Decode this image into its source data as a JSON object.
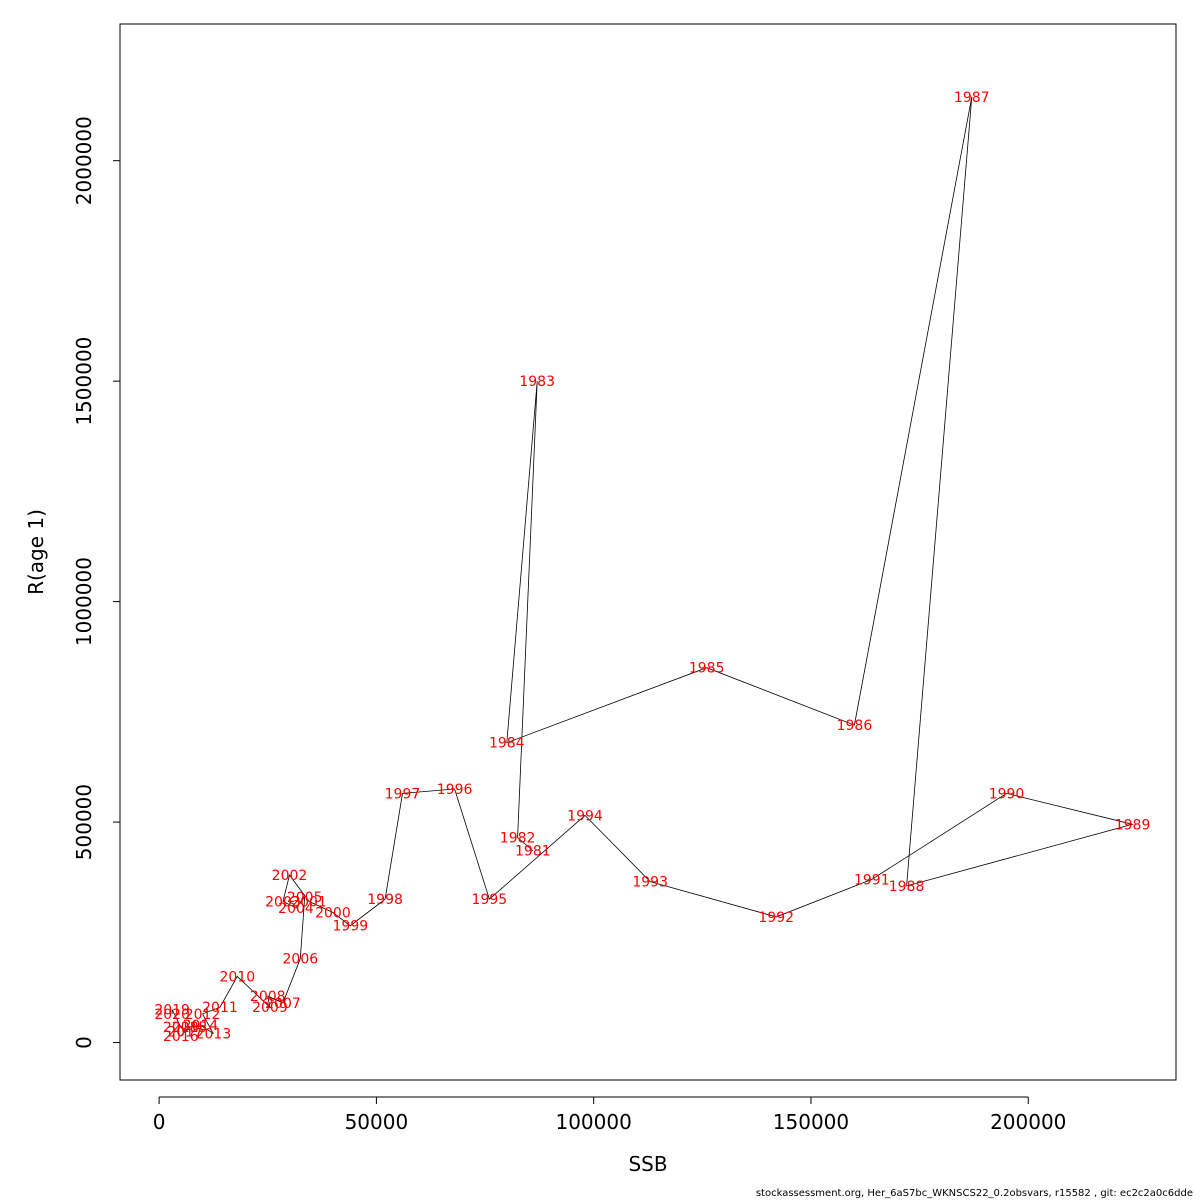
{
  "chart_data": {
    "type": "line",
    "title": "",
    "xlabel": "SSB",
    "ylabel": "R(age 1)",
    "xlim": [
      -9000,
      234000
    ],
    "ylim": [
      -85000,
      2310000
    ],
    "x_ticks": [
      0,
      50000,
      100000,
      150000,
      200000
    ],
    "x_tick_labels": [
      "0",
      "50000",
      "100000",
      "150000",
      "200000"
    ],
    "y_ticks": [
      0,
      500000,
      1000000,
      1500000,
      2000000
    ],
    "y_tick_labels": [
      "0",
      "500000",
      "1000000",
      "1500000",
      "2000000"
    ],
    "grid": false,
    "line_color": "#000000",
    "label_color": "#ff0000",
    "points": [
      {
        "label": "1981",
        "x": 86000,
        "y": 435000
      },
      {
        "label": "1982",
        "x": 82500,
        "y": 465000
      },
      {
        "label": "1983",
        "x": 87000,
        "y": 1500000
      },
      {
        "label": "1984",
        "x": 80000,
        "y": 680000
      },
      {
        "label": "1985",
        "x": 126000,
        "y": 850000
      },
      {
        "label": "1986",
        "x": 160000,
        "y": 720000
      },
      {
        "label": "1987",
        "x": 187000,
        "y": 2145000
      },
      {
        "label": "1988",
        "x": 172000,
        "y": 355000
      },
      {
        "label": "1989",
        "x": 224000,
        "y": 495000
      },
      {
        "label": "1990",
        "x": 195000,
        "y": 565000
      },
      {
        "label": "1991",
        "x": 164000,
        "y": 370000
      },
      {
        "label": "1992",
        "x": 142000,
        "y": 285000
      },
      {
        "label": "1993",
        "x": 113000,
        "y": 365000
      },
      {
        "label": "1994",
        "x": 98000,
        "y": 515000
      },
      {
        "label": "1995",
        "x": 76000,
        "y": 325000
      },
      {
        "label": "1996",
        "x": 68000,
        "y": 575000
      },
      {
        "label": "1997",
        "x": 56000,
        "y": 565000
      },
      {
        "label": "1998",
        "x": 52000,
        "y": 325000
      },
      {
        "label": "1999",
        "x": 44000,
        "y": 265000
      },
      {
        "label": "2000",
        "x": 40000,
        "y": 295000
      },
      {
        "label": "2001",
        "x": 34500,
        "y": 320000
      },
      {
        "label": "2002",
        "x": 30000,
        "y": 380000
      },
      {
        "label": "2003",
        "x": 28500,
        "y": 320000
      },
      {
        "label": "2004",
        "x": 31500,
        "y": 305000
      },
      {
        "label": "2005",
        "x": 33500,
        "y": 330000
      },
      {
        "label": "2006",
        "x": 32500,
        "y": 190000
      },
      {
        "label": "2007",
        "x": 28500,
        "y": 90000
      },
      {
        "label": "2008",
        "x": 25000,
        "y": 105000
      },
      {
        "label": "2009",
        "x": 25500,
        "y": 80000
      },
      {
        "label": "2010",
        "x": 18000,
        "y": 150000
      },
      {
        "label": "2011",
        "x": 14000,
        "y": 80000
      },
      {
        "label": "2012",
        "x": 10000,
        "y": 65000
      },
      {
        "label": "2013",
        "x": 12500,
        "y": 20000
      },
      {
        "label": "2014",
        "x": 9500,
        "y": 40000
      },
      {
        "label": "2015",
        "x": 7000,
        "y": 35000
      },
      {
        "label": "2016",
        "x": 5000,
        "y": 15000
      },
      {
        "label": "2017",
        "x": 6000,
        "y": 25000
      },
      {
        "label": "2018",
        "x": 5000,
        "y": 35000
      },
      {
        "label": "2019",
        "x": 3000,
        "y": 75000
      },
      {
        "label": "2020",
        "x": 3000,
        "y": 65000
      }
    ]
  },
  "footer": "stockassessment.org, Her_6aS7bc_WKNSCS22_0.2obsvars, r15582 , git: ec2c2a0c6dde"
}
